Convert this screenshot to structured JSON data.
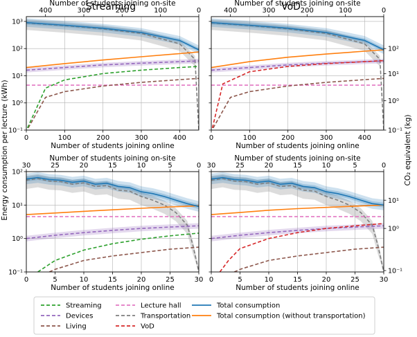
{
  "figure": {
    "ylabel_left": "Energy consumption per lecture (kWh)",
    "ylabel_right": "CO₂ equivalent (kg)",
    "col_titles": [
      "Streaming",
      "VoD"
    ]
  },
  "chart_data": [
    {
      "type": "line",
      "panel": "top-left",
      "title": "Streaming",
      "xlabel": "Number of students joining online",
      "x2label": "Number of students joining on-site",
      "xlim": [
        0,
        450
      ],
      "x_ticks": [
        "0",
        "100",
        "200",
        "300",
        "400"
      ],
      "x2_ticks": [
        "400",
        "300",
        "200",
        "100",
        "0"
      ],
      "yscale": "log",
      "ylim": [
        0.1,
        1500
      ],
      "y_ticks": [
        "10⁻¹",
        "10⁰",
        "10¹",
        "10²",
        "10³"
      ],
      "series": [
        {
          "name": "Total consumption",
          "x": [
            0,
            100,
            200,
            300,
            400,
            450
          ],
          "y": [
            900,
            720,
            560,
            390,
            200,
            90
          ]
        },
        {
          "name": "Transportation",
          "x": [
            0,
            100,
            200,
            300,
            400,
            440,
            450
          ],
          "y": [
            880,
            700,
            530,
            360,
            150,
            40,
            0.1
          ]
        },
        {
          "name": "Total consumption (without transportation)",
          "x": [
            0,
            100,
            200,
            300,
            400,
            450
          ],
          "y": [
            20,
            28,
            38,
            50,
            65,
            75
          ]
        },
        {
          "name": "Devices",
          "x": [
            0,
            100,
            200,
            300,
            400,
            450
          ],
          "y": [
            16,
            20,
            25,
            29,
            33,
            35
          ]
        },
        {
          "name": "Streaming",
          "x": [
            3,
            50,
            100,
            200,
            300,
            400,
            450
          ],
          "y": [
            0.12,
            3.5,
            7,
            12,
            16,
            20,
            22
          ]
        },
        {
          "name": "Living",
          "x": [
            5,
            50,
            100,
            200,
            300,
            400,
            450
          ],
          "y": [
            0.12,
            1.6,
            2.6,
            4.2,
            5.7,
            7.2,
            8
          ]
        },
        {
          "name": "Lecture hall",
          "x": [
            0,
            450
          ],
          "y": [
            4.5,
            4.5
          ]
        }
      ]
    },
    {
      "type": "line",
      "panel": "top-right",
      "title": "VoD",
      "xlabel": "Number of students joining online",
      "x2label": "Number of students joining on-site",
      "xlim": [
        0,
        450
      ],
      "x_ticks": [
        "0",
        "100",
        "200",
        "300",
        "400"
      ],
      "x2_ticks": [
        "400",
        "300",
        "200",
        "100",
        "0"
      ],
      "yscale": "log",
      "ylim": [
        0.1,
        1500
      ],
      "y2_ticks": [
        "10⁻¹",
        "10⁰",
        "10¹",
        "10²"
      ],
      "series": [
        {
          "name": "Total consumption",
          "x": [
            0,
            100,
            200,
            300,
            400,
            450
          ],
          "y": [
            900,
            720,
            560,
            390,
            200,
            90
          ]
        },
        {
          "name": "Transportation",
          "x": [
            0,
            100,
            200,
            300,
            400,
            440,
            450
          ],
          "y": [
            880,
            700,
            530,
            360,
            150,
            40,
            0.1
          ]
        },
        {
          "name": "Total consumption (without transportation)",
          "x": [
            0,
            100,
            200,
            300,
            400,
            450
          ],
          "y": [
            20,
            33,
            48,
            63,
            80,
            90
          ]
        },
        {
          "name": "Devices",
          "x": [
            0,
            100,
            200,
            300,
            400,
            450
          ],
          "y": [
            16,
            20,
            25,
            29,
            33,
            35
          ]
        },
        {
          "name": "VoD",
          "x": [
            3,
            30,
            100,
            200,
            300,
            400,
            450
          ],
          "y": [
            0.12,
            5,
            14,
            22,
            28,
            33,
            36
          ]
        },
        {
          "name": "Living",
          "x": [
            5,
            50,
            100,
            200,
            300,
            400,
            450
          ],
          "y": [
            0.12,
            1.6,
            2.6,
            4.2,
            5.7,
            7.2,
            8
          ]
        },
        {
          "name": "Lecture hall",
          "x": [
            0,
            450
          ],
          "y": [
            4.5,
            4.5
          ]
        }
      ]
    },
    {
      "type": "line",
      "panel": "bottom-left",
      "xlabel": "Number of students joining online",
      "x2label": "Number of students joining on-site",
      "xlim": [
        0,
        30
      ],
      "x_ticks": [
        "0",
        "5",
        "10",
        "15",
        "20",
        "25",
        "30"
      ],
      "x2_ticks": [
        "30",
        "25",
        "20",
        "15",
        "10",
        "5",
        "0"
      ],
      "yscale": "log",
      "ylim": [
        0.1,
        100
      ],
      "y_ticks": [
        "10⁻¹",
        "10⁰",
        "10¹",
        "10²"
      ],
      "series": [
        {
          "name": "Total consumption",
          "x": [
            0,
            2,
            4,
            6,
            8,
            10,
            12,
            14,
            16,
            18,
            20,
            22,
            24,
            26,
            28,
            30
          ],
          "y": [
            60,
            66,
            58,
            55,
            48,
            52,
            42,
            45,
            36,
            33,
            25,
            22,
            18,
            14,
            11,
            9
          ]
        },
        {
          "name": "Transportation",
          "x": [
            0,
            2,
            4,
            6,
            8,
            10,
            12,
            14,
            16,
            18,
            20,
            22,
            24,
            26,
            28,
            29,
            30
          ],
          "y": [
            55,
            62,
            52,
            50,
            42,
            46,
            36,
            38,
            28,
            26,
            18,
            14,
            10,
            6,
            2.5,
            0.6,
            0.1
          ]
        },
        {
          "name": "Total consumption (without transportation)",
          "x": [
            0,
            5,
            10,
            15,
            20,
            25,
            30
          ],
          "y": [
            5.2,
            5.8,
            6.5,
            7.2,
            8,
            8.8,
            9.5
          ]
        },
        {
          "name": "Lecture hall",
          "x": [
            0,
            30
          ],
          "y": [
            4.5,
            4.5
          ]
        },
        {
          "name": "Devices",
          "x": [
            0,
            5,
            10,
            15,
            20,
            25,
            30
          ],
          "y": [
            1.0,
            1.25,
            1.5,
            1.75,
            2.0,
            2.2,
            2.4
          ]
        },
        {
          "name": "Streaming",
          "x": [
            2,
            5,
            10,
            15,
            20,
            25,
            30
          ],
          "y": [
            0.1,
            0.22,
            0.45,
            0.7,
            0.95,
            1.2,
            1.45
          ]
        },
        {
          "name": "Living",
          "x": [
            4,
            5,
            10,
            15,
            20,
            25,
            30
          ],
          "y": [
            0.1,
            0.12,
            0.22,
            0.3,
            0.38,
            0.48,
            0.55
          ]
        }
      ]
    },
    {
      "type": "line",
      "panel": "bottom-right",
      "xlabel": "Number of students joining online",
      "x2label": "Number of students joining on-site",
      "xlim": [
        0,
        30
      ],
      "x_ticks": [
        "0",
        "5",
        "10",
        "15",
        "20",
        "25",
        "30"
      ],
      "x2_ticks": [
        "30",
        "25",
        "20",
        "15",
        "10",
        "5",
        "0"
      ],
      "yscale": "log",
      "ylim": [
        0.1,
        100
      ],
      "y2_ticks": [
        "10⁻¹",
        "10⁰",
        "10¹"
      ],
      "series": [
        {
          "name": "Total consumption",
          "x": [
            0,
            2,
            4,
            6,
            8,
            10,
            12,
            14,
            16,
            18,
            20,
            22,
            24,
            26,
            28,
            30
          ],
          "y": [
            60,
            66,
            58,
            55,
            48,
            52,
            42,
            45,
            36,
            33,
            25,
            22,
            18,
            14,
            11,
            10
          ]
        },
        {
          "name": "Transportation",
          "x": [
            0,
            2,
            4,
            6,
            8,
            10,
            12,
            14,
            16,
            18,
            20,
            22,
            24,
            26,
            28,
            29,
            30
          ],
          "y": [
            55,
            62,
            52,
            50,
            42,
            46,
            36,
            38,
            28,
            26,
            18,
            14,
            10,
            6,
            2.5,
            0.6,
            0.1
          ]
        },
        {
          "name": "Total consumption (without transportation)",
          "x": [
            0,
            5,
            10,
            15,
            20,
            25,
            30
          ],
          "y": [
            5.2,
            6,
            7,
            7.8,
            8.5,
            9.3,
            10
          ]
        },
        {
          "name": "Lecture hall",
          "x": [
            0,
            30
          ],
          "y": [
            4.5,
            4.5
          ]
        },
        {
          "name": "Devices",
          "x": [
            0,
            5,
            10,
            15,
            20,
            25,
            30
          ],
          "y": [
            1.0,
            1.25,
            1.5,
            1.75,
            2.0,
            2.2,
            2.4
          ]
        },
        {
          "name": "VoD",
          "x": [
            1.5,
            3,
            5,
            10,
            15,
            20,
            25,
            30
          ],
          "y": [
            0.1,
            0.22,
            0.5,
            1.0,
            1.5,
            2.0,
            2.4,
            2.8
          ]
        },
        {
          "name": "Living",
          "x": [
            4,
            5,
            10,
            15,
            20,
            25,
            30
          ],
          "y": [
            0.1,
            0.12,
            0.22,
            0.3,
            0.38,
            0.48,
            0.55
          ]
        }
      ]
    }
  ],
  "legend": {
    "columns": [
      [
        {
          "name": "Streaming",
          "color": "#2ca02c",
          "style": "dashed"
        },
        {
          "name": "Devices",
          "color": "#9467bd",
          "style": "dashed"
        },
        {
          "name": "Living",
          "color": "#8c564b",
          "style": "dashed"
        }
      ],
      [
        {
          "name": "Lecture hall",
          "color": "#e377c2",
          "style": "dashed"
        },
        {
          "name": "Transportation",
          "color": "#7f7f7f",
          "style": "dashed"
        },
        {
          "name": "VoD",
          "color": "#d62728",
          "style": "dashed"
        }
      ],
      [
        {
          "name": "Total consumption",
          "color": "#1f77b4",
          "style": "solid"
        },
        {
          "name": "Total consumption (without transportation)",
          "color": "#ff7f0e",
          "style": "solid"
        }
      ]
    ]
  },
  "colors": {
    "Total consumption": "#1f77b4",
    "Total consumption (without transportation)": "#ff7f0e",
    "Streaming": "#2ca02c",
    "Devices": "#9467bd",
    "Living": "#8c564b",
    "Lecture hall": "#e377c2",
    "Transportation": "#7f7f7f",
    "VoD": "#d62728"
  }
}
